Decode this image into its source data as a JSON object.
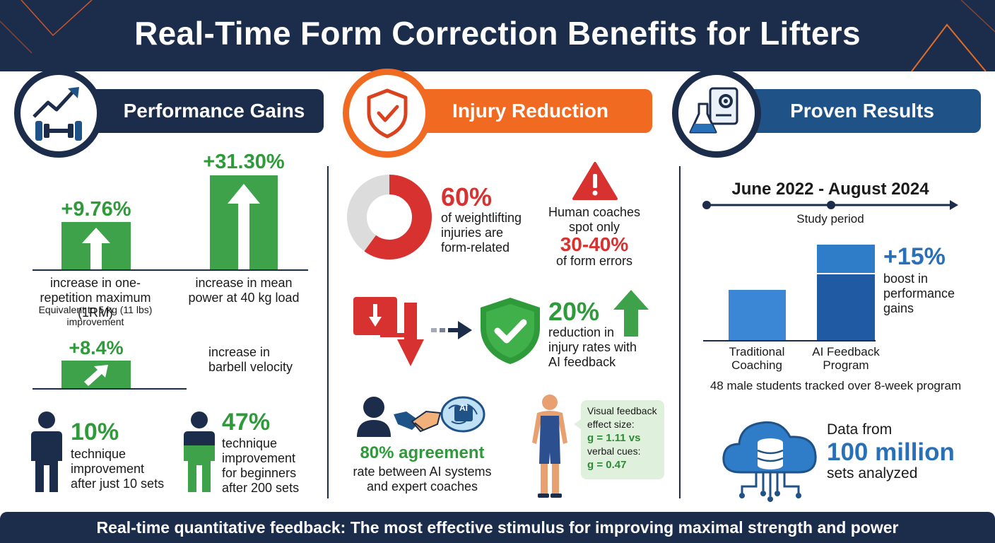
{
  "header": {
    "title": "Real-Time Form Correction Benefits for Lifters"
  },
  "sections": {
    "performance": {
      "title": "Performance Gains",
      "one_rm": {
        "value": "+9.76%",
        "label_line1": "increase in one-",
        "label_line2": "repetition maximum (1RM)",
        "sub_line1": "Equivalent to 5 kg (11 lbs)",
        "sub_line2": "improvement",
        "level": 9.76
      },
      "mean_power": {
        "value": "+31.30%",
        "label_line1": "increase in mean",
        "label_line2": "power at 40 kg load",
        "level": 31.3
      },
      "velocity": {
        "value": "+8.4%",
        "label_line1": "increase in",
        "label_line2": "barbell velocity"
      },
      "technique_10": {
        "value": "10%",
        "line1": "technique",
        "line2": "improvement",
        "line3": "after just 10 sets"
      },
      "technique_47": {
        "value": "47%",
        "line1": "technique",
        "line2": "improvement",
        "line3": "for beginners",
        "line4": "after 200 sets"
      }
    },
    "injury": {
      "title": "Injury Reduction",
      "form_related": {
        "value": "60%",
        "line1": "of weightlifting",
        "line2": "injuries are",
        "line3": "form-related",
        "fraction": 0.6
      },
      "coaches": {
        "line1": "Human coaches",
        "line2": "spot only",
        "value": "30-40%",
        "line3": "of form errors"
      },
      "reduction": {
        "value": "20%",
        "line1": "reduction in",
        "line2": "injury rates with",
        "line3": "AI feedback"
      },
      "agreement": {
        "value": "80% agreement",
        "line1": "rate between AI systems",
        "line2": "and expert coaches"
      },
      "bubble": {
        "line1": "Visual feedback",
        "line2": "effect size:",
        "line3": "g = 1.11 vs",
        "line4": "verbal cues:",
        "line5": "g = 0.47"
      }
    },
    "results": {
      "title": "Proven Results",
      "period": "June 2022 - August 2024",
      "period_label": "Study period",
      "boost": {
        "value": "+15%",
        "line1": "boost in",
        "line2": "performance",
        "line3": "gains"
      },
      "bars": [
        {
          "label_line1": "Traditional",
          "label_line2": "Coaching"
        },
        {
          "label_line1": "AI Feedback",
          "label_line2": "Program"
        }
      ],
      "study_note": "48 male students tracked over 8-week program",
      "data_line1": "Data from",
      "data_value": "100 million",
      "data_line2": "sets analyzed"
    }
  },
  "footer": {
    "text": "Real-time quantitative feedback: The most effective stimulus for improving maximal strength and power"
  },
  "colors": {
    "navy": "#1b2d4a",
    "orange": "#f06a22",
    "blue": "#1f5387",
    "green": "#2e9a3a",
    "red": "#d7322f",
    "accent_blue": "#2870b8"
  }
}
